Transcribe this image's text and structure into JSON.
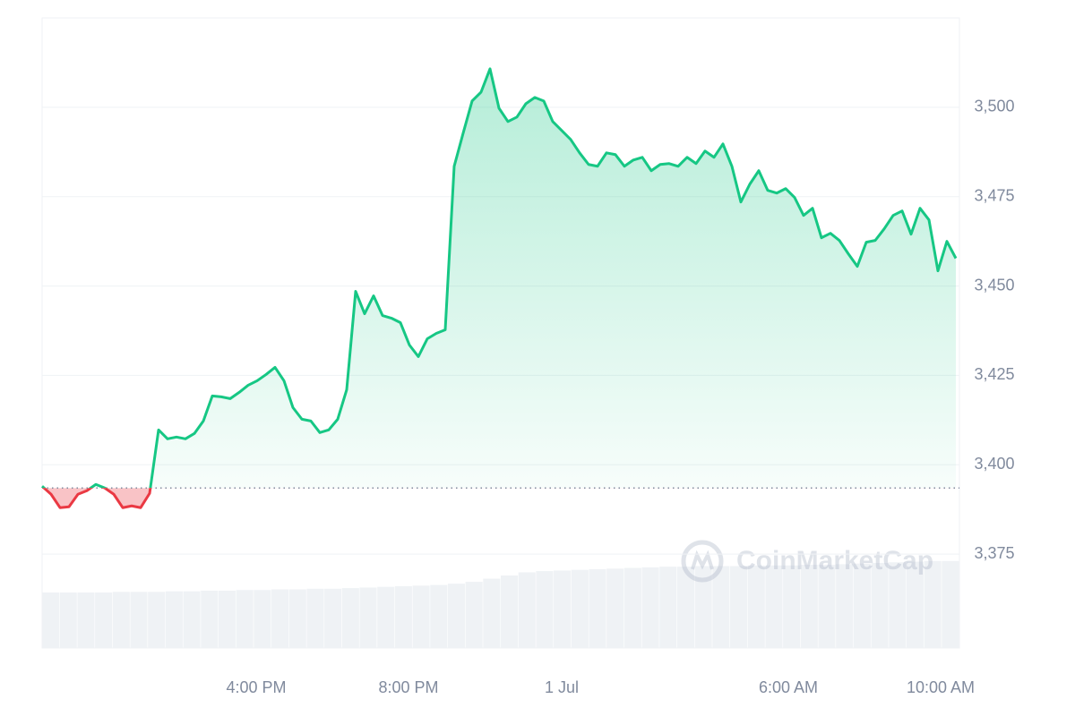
{
  "chart_data": {
    "type": "line",
    "series": [
      {
        "name": "Price",
        "color": "#16c784",
        "negative_color": "#ea3943",
        "values": [
          3394.0,
          3391.75,
          3388.0,
          3388.25,
          3391.75,
          3392.75,
          3394.5,
          3393.5,
          3391.75,
          3388.0,
          3388.5,
          3388.0,
          3392.0,
          3409.75,
          3407.25,
          3407.75,
          3407.25,
          3408.75,
          3412.25,
          3419.25,
          3419.0,
          3418.5,
          3420.25,
          3422.25,
          3423.5,
          3425.25,
          3427.25,
          3423.5,
          3416.0,
          3412.75,
          3412.25,
          3409.0,
          3409.75,
          3412.75,
          3421.0,
          3448.5,
          3442.25,
          3447.25,
          3441.75,
          3441.0,
          3439.75,
          3433.5,
          3430.25,
          3435.25,
          3436.75,
          3437.75,
          3483.5,
          3492.75,
          3501.75,
          3504.25,
          3510.75,
          3499.75,
          3496.0,
          3497.25,
          3501.0,
          3502.75,
          3501.75,
          3496.0,
          3493.5,
          3491.0,
          3487.25,
          3484.0,
          3483.5,
          3487.25,
          3486.75,
          3483.5,
          3485.25,
          3486.0,
          3482.25,
          3484.0,
          3484.25,
          3483.5,
          3486.0,
          3484.25,
          3487.75,
          3486.0,
          3489.75,
          3483.5,
          3473.5,
          3478.5,
          3482.25,
          3476.75,
          3476.0,
          3477.25,
          3474.75,
          3469.75,
          3471.75,
          3463.5,
          3464.75,
          3462.75,
          3459.0,
          3455.5,
          3462.25,
          3462.75,
          3466.0,
          3469.75,
          3471.0,
          3464.5,
          3471.75,
          3468.5,
          3454.25,
          3462.5,
          3457.75
        ]
      }
    ],
    "baseline": 3393.5,
    "volume": {
      "color": "#eff2f5",
      "axis": "y2",
      "values": [
        8.8,
        8.8,
        8.8,
        8.8,
        8.9,
        8.9,
        8.9,
        9.0,
        9.0,
        9.1,
        9.1,
        9.2,
        9.2,
        9.3,
        9.3,
        9.4,
        9.4,
        9.5,
        9.6,
        9.7,
        9.8,
        9.9,
        10.0,
        10.2,
        10.5,
        11.0,
        11.5,
        12.0,
        12.2,
        12.3,
        12.4,
        12.5,
        12.6,
        12.7,
        12.8,
        12.9,
        12.9,
        13.0,
        13.0,
        13.0,
        13.1,
        13.1,
        13.1,
        13.2,
        13.2,
        13.3,
        13.4,
        13.5,
        13.6,
        13.7,
        13.8,
        13.8
      ]
    },
    "xlim": [
      0,
      102.4
    ],
    "xticks": [
      {
        "value": 23.9,
        "label": "4:00 PM"
      },
      {
        "value": 40.9,
        "label": "8:00 PM"
      },
      {
        "value": 58,
        "label": "1 Jul"
      },
      {
        "value": 83.3,
        "label": "6:00 AM"
      },
      {
        "value": 100.3,
        "label": "10:00 AM"
      }
    ],
    "ylim": [
      3348.75,
      3525
    ],
    "yticks": [
      {
        "value": 3375,
        "label": "3,375"
      },
      {
        "value": 3400,
        "label": "3,400"
      },
      {
        "value": 3425,
        "label": "3,425"
      },
      {
        "value": 3450,
        "label": "3,450"
      },
      {
        "value": 3475,
        "label": "3,475"
      },
      {
        "value": 3500,
        "label": "3,500"
      }
    ],
    "y2lim": [
      0,
      100
    ],
    "grid": true,
    "watermark": "CoinMarketCap"
  }
}
